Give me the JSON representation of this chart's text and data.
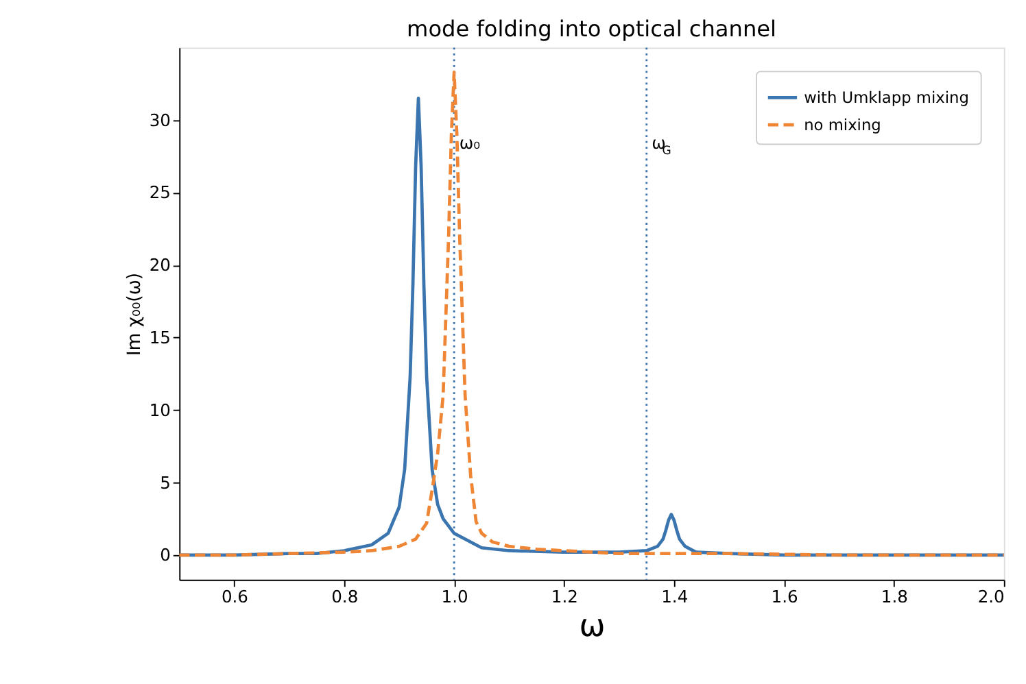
{
  "chart_data": {
    "type": "line",
    "title": "mode folding into optical channel",
    "xlabel": "ω",
    "ylabel": "Im χ₀₀(ω)",
    "xlim": [
      0.5,
      2.0
    ],
    "ylim": [
      -1.7,
      35
    ],
    "xticks": [
      0.6,
      0.8,
      {
        "value": 1.0,
        "label": "1.0"
      },
      1.2,
      1.4,
      1.6,
      1.8,
      {
        "value": 2.0,
        "label": "2.0"
      }
    ],
    "yticks": [
      0,
      5,
      10,
      15,
      20,
      25,
      30
    ],
    "grid": false,
    "legend": "top right",
    "marker": "none",
    "series": [
      {
        "name": "with Umklapp mixing",
        "color": "#3b75af",
        "line_style": "solid",
        "x": [
          0.5,
          0.6,
          0.7,
          0.75,
          0.8,
          0.85,
          0.88,
          0.9,
          0.91,
          0.92,
          0.925,
          0.93,
          0.935,
          0.94,
          0.945,
          0.95,
          0.96,
          0.97,
          0.98,
          1.0,
          1.05,
          1.1,
          1.2,
          1.3,
          1.35,
          1.37,
          1.38,
          1.385,
          1.39,
          1.395,
          1.4,
          1.405,
          1.41,
          1.42,
          1.44,
          1.5,
          1.6,
          1.8,
          2.0
        ],
        "values": [
          0,
          0,
          0.1,
          0.1,
          0.3,
          0.7,
          1.5,
          3.3,
          5.9,
          12.3,
          18.6,
          26.8,
          31.5,
          26.8,
          18.6,
          12.3,
          5.9,
          3.5,
          2.5,
          1.5,
          0.5,
          0.3,
          0.2,
          0.2,
          0.3,
          0.6,
          1.1,
          1.7,
          2.4,
          2.8,
          2.4,
          1.7,
          1.1,
          0.6,
          0.2,
          0.1,
          0,
          0,
          0
        ]
      },
      {
        "name": "no mixing",
        "color": "#ef8636",
        "line_style": "dashed",
        "x": [
          0.5,
          0.6,
          0.7,
          0.8,
          0.85,
          0.9,
          0.93,
          0.95,
          0.96,
          0.97,
          0.98,
          0.99,
          0.995,
          1.0,
          1.005,
          1.01,
          1.02,
          1.03,
          1.04,
          1.05,
          1.07,
          1.1,
          1.15,
          1.2,
          1.3,
          1.5,
          1.7,
          2.0
        ],
        "values": [
          0,
          0,
          0.1,
          0.2,
          0.3,
          0.6,
          1.1,
          2.2,
          4.5,
          7,
          11,
          22,
          29,
          33.3,
          29,
          22,
          11,
          5.5,
          2.3,
          1.5,
          0.9,
          0.6,
          0.4,
          0.3,
          0.1,
          0.1,
          0,
          0
        ]
      }
    ],
    "ref_lines": [
      {
        "axis": "x",
        "value": 1.0,
        "label": "ω₀",
        "color": "#3b75af",
        "line_style": "dotted"
      },
      {
        "axis": "x",
        "value": 1.35,
        "label": "ω$_{G}$",
        "color": "#3b75af",
        "line_style": "dotted"
      }
    ]
  }
}
